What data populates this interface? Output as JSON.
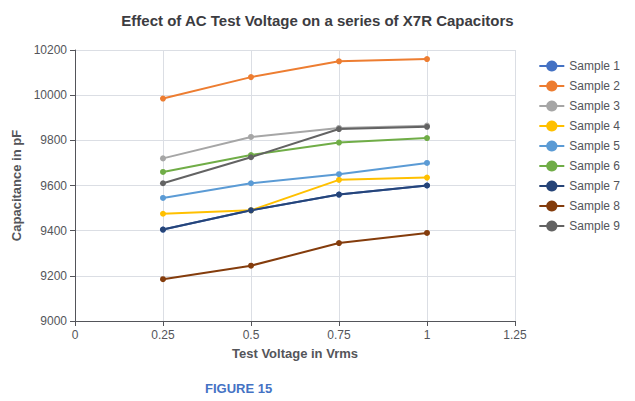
{
  "chart_data": {
    "type": "line",
    "title": "Effect of AC Test Voltage on a series of X7R Capacitors",
    "xlabel": "Test Voltage in Vrms",
    "ylabel": "Capacitance in pF",
    "annotations": [
      {
        "text": "FIGURE 15",
        "color": "#4472c4"
      }
    ],
    "x": [
      0.25,
      0.5,
      0.75,
      1.0
    ],
    "series": [
      {
        "name": "Sample 1",
        "color": "#4472c4",
        "values": [
          9405,
          9490,
          9560,
          9600
        ]
      },
      {
        "name": "Sample 2",
        "color": "#ed7d31",
        "values": [
          9985,
          10080,
          10150,
          10160
        ]
      },
      {
        "name": "Sample 3",
        "color": "#a6a6a6",
        "values": [
          9720,
          9815,
          9855,
          9865
        ]
      },
      {
        "name": "Sample 4",
        "color": "#ffc000",
        "values": [
          9475,
          9490,
          9625,
          9635
        ]
      },
      {
        "name": "Sample 5",
        "color": "#5b9bd5",
        "values": [
          9545,
          9610,
          9650,
          9700
        ]
      },
      {
        "name": "Sample 6",
        "color": "#70ad47",
        "values": [
          9660,
          9735,
          9790,
          9810
        ]
      },
      {
        "name": "Sample 7",
        "color": "#264478",
        "values": [
          9405,
          9490,
          9560,
          9600
        ]
      },
      {
        "name": "Sample 8",
        "color": "#843c0c",
        "values": [
          9185,
          9245,
          9345,
          9390
        ]
      },
      {
        "name": "Sample 9",
        "color": "#636363",
        "values": [
          9610,
          9725,
          9850,
          9860
        ]
      }
    ],
    "xlim": [
      0,
      1.25
    ],
    "xticks": [
      0,
      0.25,
      0.5,
      0.75,
      1.0,
      1.25
    ],
    "ylim": [
      9000,
      10200
    ],
    "yticks": [
      9000,
      9200,
      9400,
      9600,
      9800,
      10000,
      10200
    ],
    "grid": true,
    "legend": "right",
    "marker": "circle"
  }
}
